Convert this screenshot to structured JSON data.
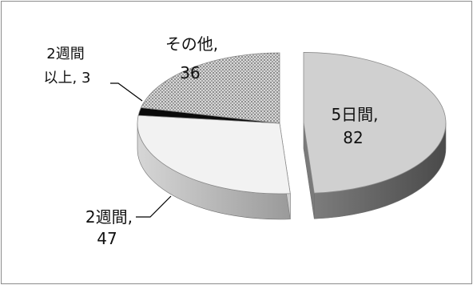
{
  "chart_data": {
    "type": "pie",
    "style": "3d-exploded",
    "title": "",
    "slices": [
      {
        "category_line1": "5日間,",
        "category_line2": "82",
        "value": 82,
        "fill": "#d0d0d0",
        "side": "#8e8e8e",
        "pattern": "none",
        "exploded": true
      },
      {
        "category_line1": "2週間,",
        "category_line2": "47",
        "value": 47,
        "fill": "#f2f2f2",
        "side": "#c4c4c4",
        "pattern": "none",
        "exploded": false
      },
      {
        "category_line1": "2週間",
        "category_line2": "以上, 3",
        "value": 3,
        "fill": "#0b0b0b",
        "side": "#000000",
        "pattern": "none",
        "exploded": false
      },
      {
        "category_line1": "その他,",
        "category_line2": "36",
        "value": 36,
        "fill": "#bdbdbd",
        "side": "#909090",
        "pattern": "dots",
        "exploded": false
      }
    ],
    "legend": "none",
    "data_labels": "category-and-value"
  }
}
